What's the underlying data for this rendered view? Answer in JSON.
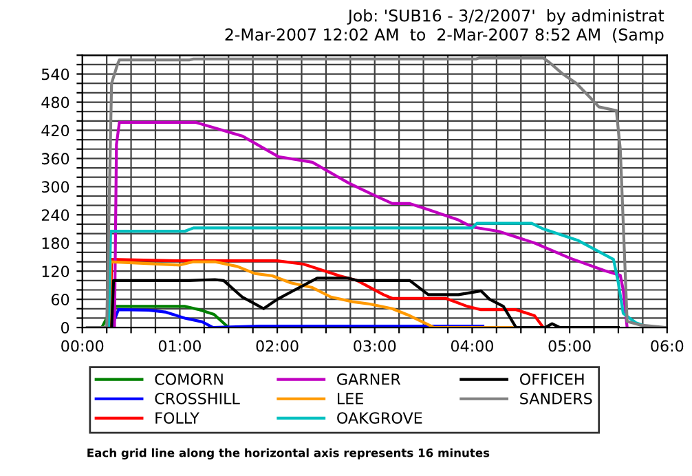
{
  "chart_data": {
    "type": "line",
    "title": "Job: 'SUB16 - 3/2/2007'  by administrat",
    "subtitle": "2-Mar-2007 12:02 AM  to  2-Mar-2007 8:52 AM  (Samp",
    "annotations": [
      "Each grid line along the horizontal axis represents 16 minutes"
    ],
    "xlim": [
      0,
      6.0
    ],
    "xticks": [
      {
        "value": 0,
        "label": "00:00"
      },
      {
        "value": 0.25,
        "label": null
      },
      {
        "value": 0.5,
        "label": null
      },
      {
        "value": 0.75,
        "label": null
      },
      {
        "value": 1,
        "label": "01:00"
      },
      {
        "value": 1.25,
        "label": null
      },
      {
        "value": 1.5,
        "label": null
      },
      {
        "value": 1.75,
        "label": null
      },
      {
        "value": 2,
        "label": "02:00"
      },
      {
        "value": 2.25,
        "label": null
      },
      {
        "value": 2.5,
        "label": null
      },
      {
        "value": 2.75,
        "label": null
      },
      {
        "value": 3,
        "label": "03:00"
      },
      {
        "value": 3.25,
        "label": null
      },
      {
        "value": 3.5,
        "label": null
      },
      {
        "value": 3.75,
        "label": null
      },
      {
        "value": 4,
        "label": "04:00"
      },
      {
        "value": 4.25,
        "label": null
      },
      {
        "value": 4.5,
        "label": null
      },
      {
        "value": 4.75,
        "label": null
      },
      {
        "value": 5,
        "label": "05:00"
      },
      {
        "value": 5.25,
        "label": null
      },
      {
        "value": 5.5,
        "label": null
      },
      {
        "value": 5.75,
        "label": null
      },
      {
        "value": 6,
        "label": "06:0"
      }
    ],
    "ylim": [
      0,
      580
    ],
    "yticks": [
      0,
      {
        "value": 20,
        "label": null
      },
      {
        "value": 40,
        "label": null
      },
      60,
      {
        "value": 80,
        "label": null
      },
      {
        "value": 100,
        "label": null
      },
      120,
      {
        "value": 140,
        "label": null
      },
      {
        "value": 160,
        "label": null
      },
      180,
      {
        "value": 200,
        "label": null
      },
      {
        "value": 220,
        "label": null
      },
      240,
      {
        "value": 260,
        "label": null
      },
      {
        "value": 280,
        "label": null
      },
      300,
      {
        "value": 320,
        "label": null
      },
      {
        "value": 340,
        "label": null
      },
      360,
      {
        "value": 380,
        "label": null
      },
      {
        "value": 400,
        "label": null
      },
      420,
      {
        "value": 440,
        "label": null
      },
      {
        "value": 460,
        "label": null
      },
      480,
      {
        "value": 500,
        "label": null
      },
      {
        "value": 520,
        "label": null
      },
      540,
      {
        "value": 560,
        "label": null
      },
      {
        "value": 580,
        "label": null
      }
    ],
    "grid": true,
    "legend": "bottom",
    "marker": "none",
    "line_style": "solid",
    "series": [
      {
        "name": "COMORN",
        "color": "#008000",
        "x": [
          0.2,
          0.25,
          0.31,
          1.05,
          1.2,
          1.35,
          1.5
        ],
        "values": [
          0,
          20,
          45,
          45,
          38,
          28,
          0
        ]
      },
      {
        "name": "CROSSHILL",
        "color": "#0000ff",
        "x": [
          0.3,
          0.37,
          0.68,
          0.85,
          1.05,
          1.23,
          1.34,
          1.82,
          4.11
        ],
        "values": [
          0,
          38,
          37,
          33,
          20,
          12,
          0,
          3,
          3
        ]
      },
      {
        "name": "FOLLY",
        "color": "#ff0000",
        "x": [
          0.29,
          0.3,
          1.0,
          2.0,
          2.27,
          2.64,
          2.82,
          3.09,
          3.18,
          3.73,
          3.95,
          4.09,
          4.45,
          4.64,
          4.73
        ],
        "values": [
          0,
          145,
          142,
          142,
          135,
          110,
          100,
          70,
          62,
          62,
          45,
          38,
          38,
          25,
          0
        ]
      },
      {
        "name": "GARNER",
        "color": "#c000c0",
        "x": [
          0.33,
          0.35,
          0.38,
          1.16,
          1.64,
          2.01,
          2.36,
          2.73,
          2.95,
          3.18,
          3.36,
          3.55,
          3.86,
          4.0,
          4.27,
          4.64,
          5.0,
          5.36,
          5.52,
          5.55,
          5.59
        ],
        "values": [
          0,
          390,
          437,
          437,
          408,
          364,
          352,
          308,
          286,
          264,
          264,
          251,
          229,
          214,
          205,
          180,
          148,
          121,
          111,
          80,
          0
        ]
      },
      {
        "name": "LEE",
        "color": "#ff9900",
        "x": [
          0.28,
          0.29,
          1.0,
          1.14,
          1.36,
          1.59,
          1.77,
          1.95,
          2.14,
          2.36,
          2.55,
          2.77,
          2.95,
          3.18,
          3.36,
          3.61,
          4.41
        ],
        "values": [
          0,
          140,
          133,
          140,
          140,
          130,
          115,
          110,
          95,
          85,
          65,
          55,
          50,
          40,
          25,
          0,
          0
        ]
      },
      {
        "name": "OAKGROVE",
        "color": "#00c0c0",
        "x": [
          0.27,
          0.29,
          1.05,
          1.14,
          4.0,
          4.05,
          4.61,
          4.73,
          5.09,
          5.45,
          5.5,
          5.55,
          5.68,
          5.75
        ],
        "values": [
          0,
          205,
          205,
          212,
          212,
          222,
          222,
          210,
          185,
          145,
          95,
          30,
          10,
          5
        ]
      },
      {
        "name": "OFFICEH",
        "color": "#000000",
        "x": [
          0.3,
          0.32,
          1.09,
          1.36,
          1.45,
          1.64,
          1.73,
          1.86,
          2.0,
          2.18,
          2.41,
          2.73,
          2.82,
          3.36,
          3.55,
          3.86,
          4.09,
          4.18,
          4.32,
          4.45,
          4.75,
          4.82,
          4.9,
          5.5
        ],
        "values": [
          0,
          100,
          100,
          102,
          100,
          65,
          55,
          40,
          60,
          80,
          105,
          105,
          100,
          100,
          70,
          70,
          78,
          60,
          45,
          0,
          0,
          8,
          0,
          0
        ]
      },
      {
        "name": "SANDERS",
        "color": "#808080",
        "x": [
          0.05,
          0.25,
          0.3,
          0.36,
          0.38,
          1.1,
          1.14,
          4.04,
          4.07,
          4.73,
          4.79,
          4.93,
          5.07,
          5.21,
          5.3,
          5.48,
          5.49,
          5.52,
          5.59,
          5.73,
          5.99
        ],
        "values": [
          0,
          0,
          520,
          560,
          570,
          570,
          572,
          572,
          574,
          574,
          565,
          540,
          520,
          490,
          470,
          462,
          440,
          380,
          13,
          5,
          0
        ]
      }
    ]
  }
}
